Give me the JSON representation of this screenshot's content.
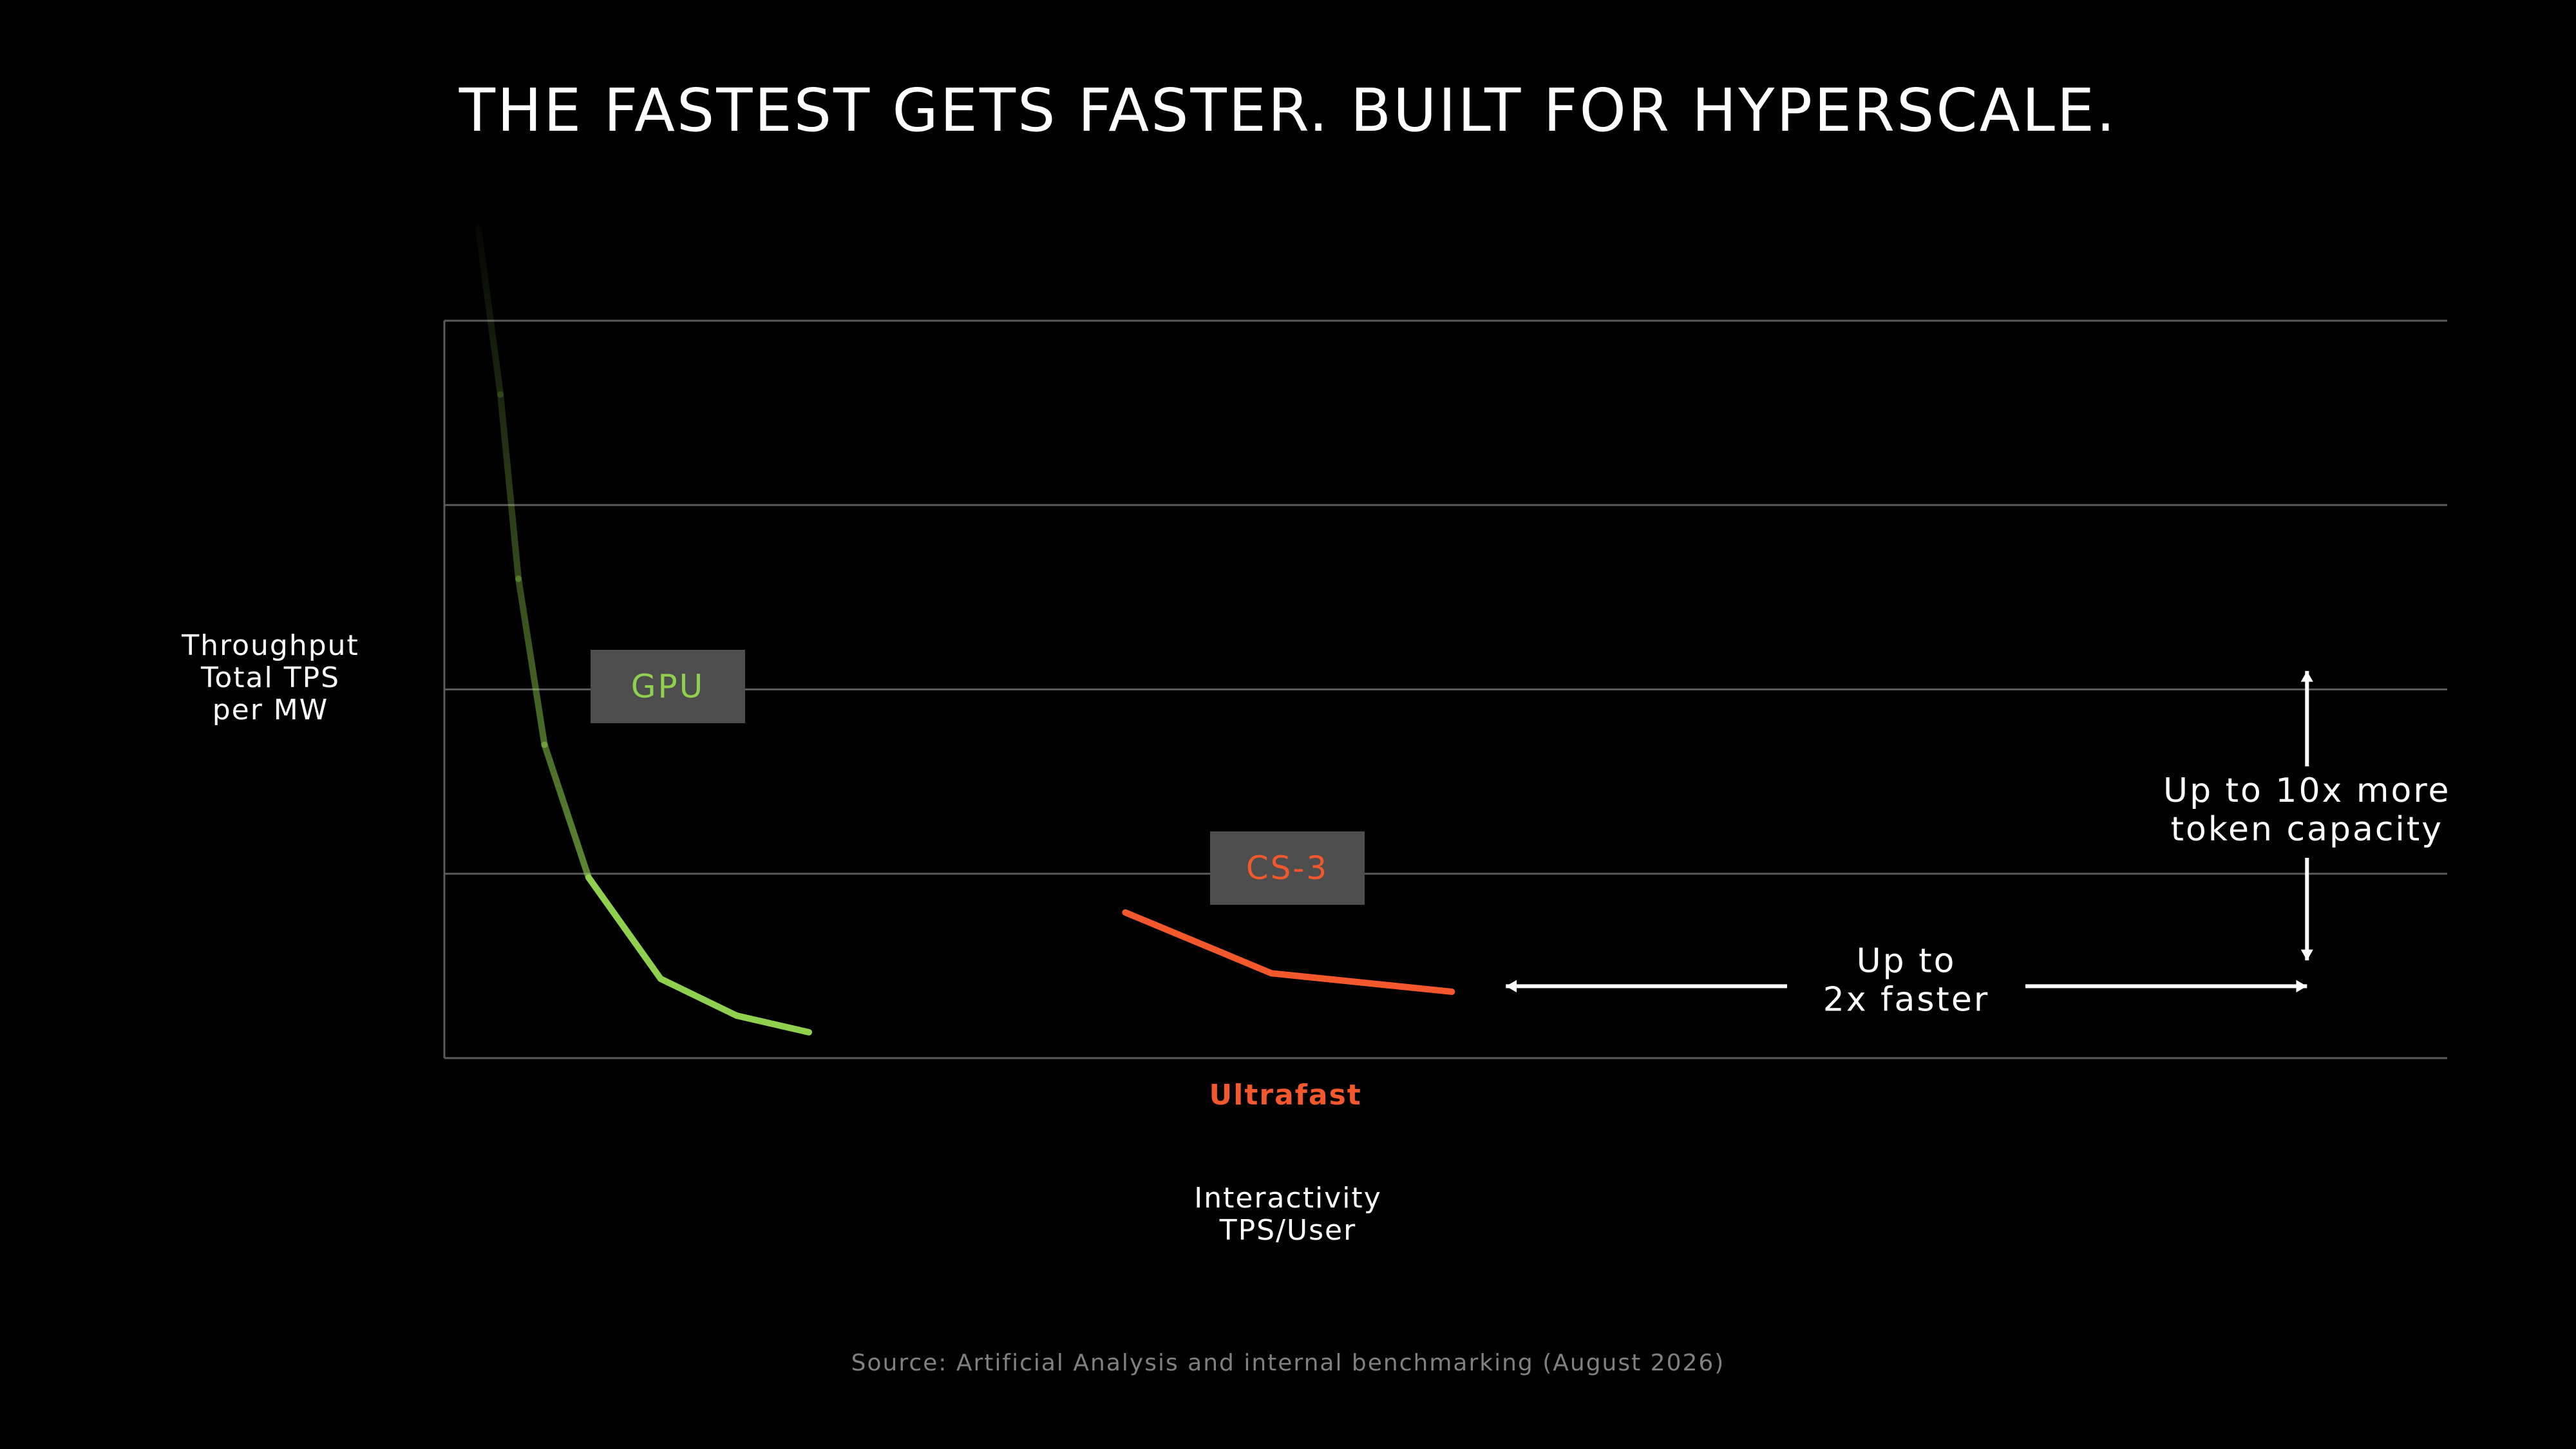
{
  "title": "THE FASTEST GETS FASTER. BUILT FOR HYPERSCALE.",
  "ylabel_lines": [
    "Throughput",
    "Total TPS",
    "per MW"
  ],
  "xlabel_lines": [
    "Interactivity",
    "TPS/User"
  ],
  "source": "Source: Artificial Analysis and internal benchmarking (August 2026)",
  "colors": {
    "gpu": "#8fd14f",
    "cs3": "#f2582b",
    "grid": "#5a5a5a",
    "label_box": "#4d4d4d"
  },
  "chart_data": {
    "type": "line",
    "title": "THE FASTEST GETS FASTER. BUILT FOR HYPERSCALE.",
    "xlabel": "Interactivity TPS/User",
    "ylabel": "Throughput Total TPS per MW",
    "xlim": [
      0,
      100
    ],
    "ylim": [
      0,
      4
    ],
    "grid": true,
    "ticks_labeled": false,
    "x_tick_labels": [
      {
        "x": 42,
        "label": "Ultrafast"
      }
    ],
    "series": [
      {
        "name": "GPU",
        "color": "#8fd14f",
        "fade_top": true,
        "x": [
          1.7,
          2.8,
          3.7,
          5.0,
          7.2,
          10.8,
          14.6,
          18.2
        ],
        "y": [
          4.5,
          3.6,
          2.6,
          1.7,
          0.98,
          0.43,
          0.23,
          0.14
        ]
      },
      {
        "name": "CS-3",
        "color": "#f2582b",
        "x": [
          34,
          41.3,
          50.3
        ],
        "y": [
          0.79,
          0.46,
          0.36
        ]
      }
    ],
    "annotations": [
      {
        "lines": [
          "Up to",
          "2x faster"
        ],
        "direction": "horizontal",
        "from": {
          "x": 53,
          "y": 0.39
        },
        "to": {
          "x": 93,
          "y": 0.39
        }
      },
      {
        "lines": [
          "Up to 10x more",
          "token capacity"
        ],
        "direction": "vertical",
        "from": {
          "x": 93,
          "y": 2.1
        },
        "to": {
          "x": 93,
          "y": 0.53
        }
      }
    ]
  }
}
